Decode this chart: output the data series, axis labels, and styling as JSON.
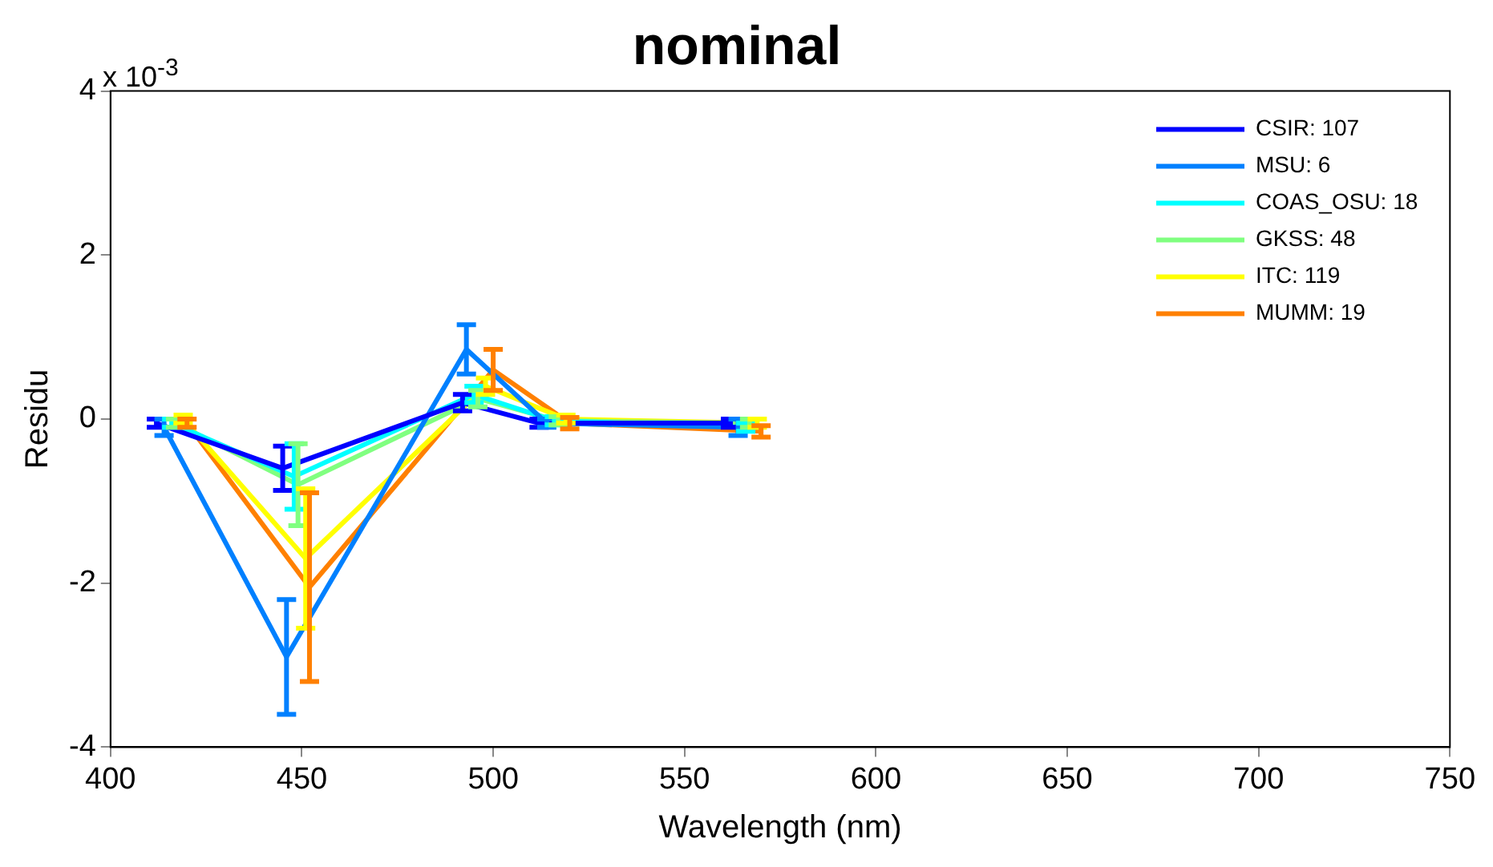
{
  "chart_data": {
    "type": "line",
    "title": "nominal",
    "xlabel": "Wavelength (nm)",
    "ylabel": "Residu",
    "annotations": [
      "x 10$^{-3}$"
    ],
    "xlim": [
      400,
      750
    ],
    "xticks": [
      400,
      450,
      500,
      550,
      600,
      650,
      700,
      750
    ],
    "ylim": [
      -4,
      4
    ],
    "yticks": [
      -4,
      -2,
      0,
      2,
      4
    ],
    "grid": false,
    "legend": "top right",
    "marker": "none",
    "line_style": "solid",
    "series": [
      {
        "name": "CSIR: 107",
        "color": "#0000ff",
        "x": [
          412,
          445,
          492,
          512,
          562
        ],
        "values": [
          -0.05,
          -0.6,
          0.2,
          -0.05,
          -0.05
        ],
        "errors": [
          0.05,
          0.27,
          0.1,
          0.05,
          0.05
        ]
      },
      {
        "name": "MSU: 6",
        "color": "#0080ff",
        "x": [
          414,
          446,
          493,
          514,
          564
        ],
        "values": [
          -0.1,
          -2.9,
          0.85,
          -0.05,
          -0.1
        ],
        "errors": [
          0.1,
          0.7,
          0.3,
          0.05,
          0.1
        ]
      },
      {
        "name": "COAS_OSU: 18",
        "color": "#00ffff",
        "x": [
          416,
          448,
          495,
          516,
          566
        ],
        "values": [
          -0.05,
          -0.7,
          0.3,
          -0.02,
          -0.1
        ],
        "errors": [
          0.05,
          0.4,
          0.1,
          0.05,
          0.05
        ]
      },
      {
        "name": "GKSS: 48",
        "color": "#80ff80",
        "x": [
          417,
          449,
          496,
          517,
          567
        ],
        "values": [
          -0.05,
          -0.8,
          0.25,
          -0.02,
          -0.05
        ],
        "errors": [
          0.05,
          0.5,
          0.1,
          0.05,
          0.05
        ]
      },
      {
        "name": "ITC: 119",
        "color": "#ffff00",
        "x": [
          419,
          451,
          498,
          519,
          569
        ],
        "values": [
          0,
          -1.7,
          0.4,
          0,
          -0.05
        ],
        "errors": [
          0.05,
          0.85,
          0.1,
          0.05,
          0.05
        ]
      },
      {
        "name": "MUMM: 19",
        "color": "#ff8000",
        "x": [
          420,
          452,
          500,
          520,
          570
        ],
        "values": [
          -0.05,
          -2.05,
          0.6,
          -0.05,
          -0.15
        ],
        "errors": [
          0.05,
          1.15,
          0.25,
          0.07,
          0.07
        ]
      }
    ]
  }
}
